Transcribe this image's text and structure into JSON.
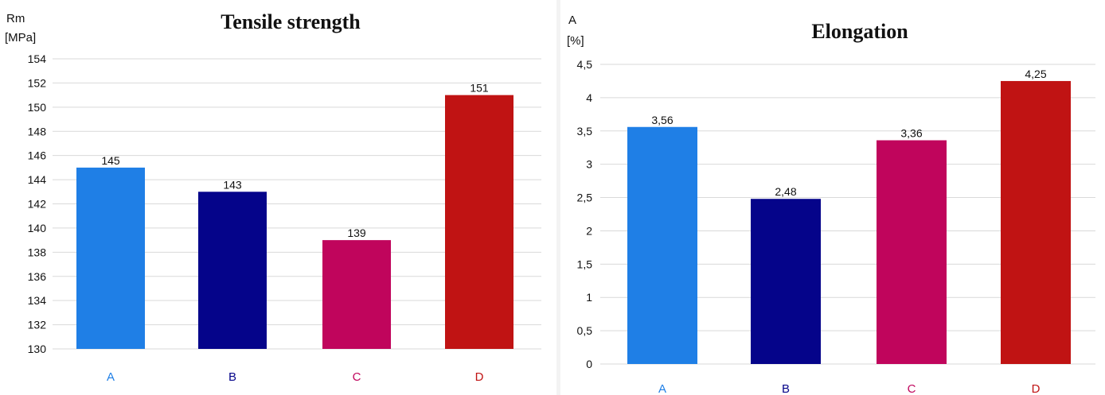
{
  "chart_data": [
    {
      "type": "bar",
      "title": "Tensile strength",
      "ylabel_line1": "Rm",
      "ylabel_line2": "[MPa]",
      "categories": [
        "A",
        "B",
        "C",
        "D"
      ],
      "values": [
        145,
        143,
        139,
        151
      ],
      "value_labels": [
        "145",
        "143",
        "139",
        "151"
      ],
      "colors": [
        "#1f7fe6",
        "#05048a",
        "#c0055c",
        "#c01313"
      ],
      "ylim": [
        130,
        154
      ],
      "yticks": [
        130,
        132,
        134,
        136,
        138,
        140,
        142,
        144,
        146,
        148,
        150,
        152,
        154
      ],
      "ytick_labels": [
        "130",
        "132",
        "134",
        "136",
        "138",
        "140",
        "142",
        "144",
        "146",
        "148",
        "150",
        "152",
        "154"
      ],
      "grid": true,
      "legend": "none"
    },
    {
      "type": "bar",
      "title": "Elongation",
      "ylabel_line1": "A",
      "ylabel_line2": "[%]",
      "categories": [
        "A",
        "B",
        "C",
        "D"
      ],
      "values": [
        3.56,
        2.48,
        3.36,
        4.25
      ],
      "value_labels": [
        "3,56",
        "2,48",
        "3,36",
        "4,25"
      ],
      "colors": [
        "#1f7fe6",
        "#05048a",
        "#c0055c",
        "#c01313"
      ],
      "ylim": [
        0,
        4.5
      ],
      "yticks": [
        0,
        0.5,
        1,
        1.5,
        2,
        2.5,
        3,
        3.5,
        4,
        4.5
      ],
      "ytick_labels": [
        "0",
        "0,5",
        "1",
        "1,5",
        "2",
        "2,5",
        "3",
        "3,5",
        "4",
        "4,5"
      ],
      "grid": true,
      "legend": "none"
    }
  ]
}
